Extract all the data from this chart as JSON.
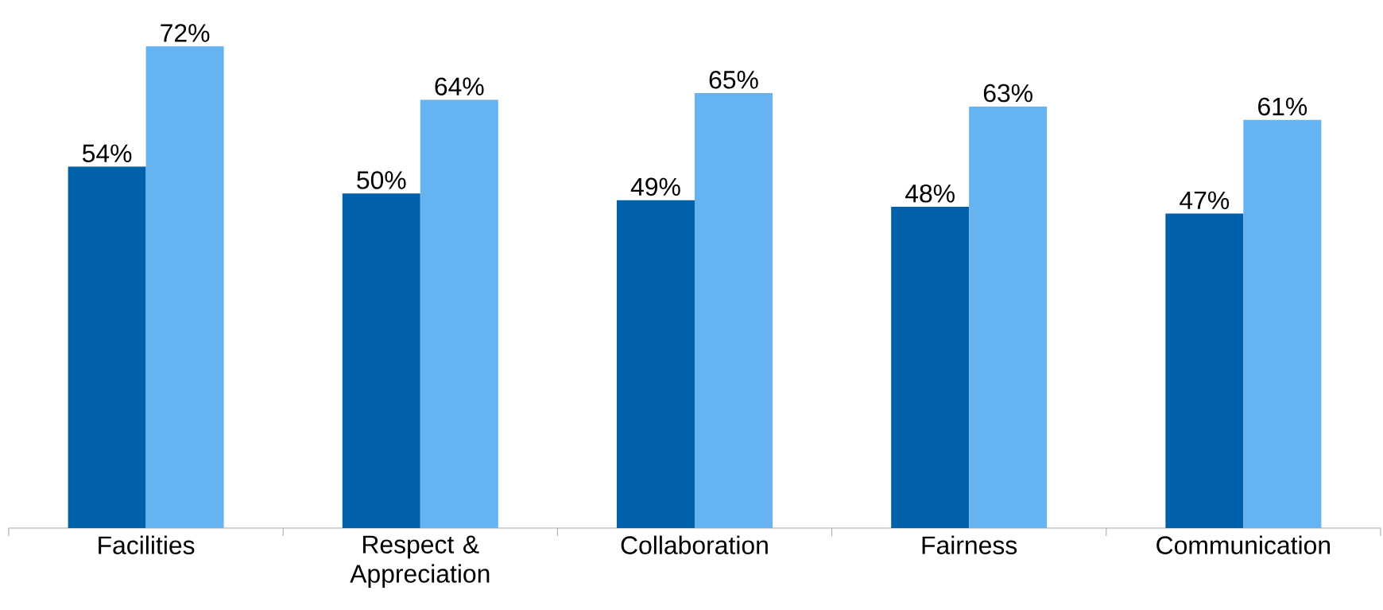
{
  "chart_data": {
    "type": "bar",
    "categories": [
      "Facilities",
      "Respect & Appreciation",
      "Collaboration",
      "Fairness",
      "Communication"
    ],
    "series": [
      {
        "color": "#0060aa",
        "values": [
          54,
          50,
          49,
          48,
          47
        ],
        "value_labels": [
          "54%",
          "50%",
          "49%",
          "48%",
          "47%"
        ]
      },
      {
        "color": "#65b3f0",
        "values": [
          72,
          64,
          65,
          63,
          61
        ],
        "value_labels": [
          "72%",
          "64%",
          "65%",
          "63%",
          "61%"
        ]
      }
    ],
    "tick_labels": "x"
  }
}
